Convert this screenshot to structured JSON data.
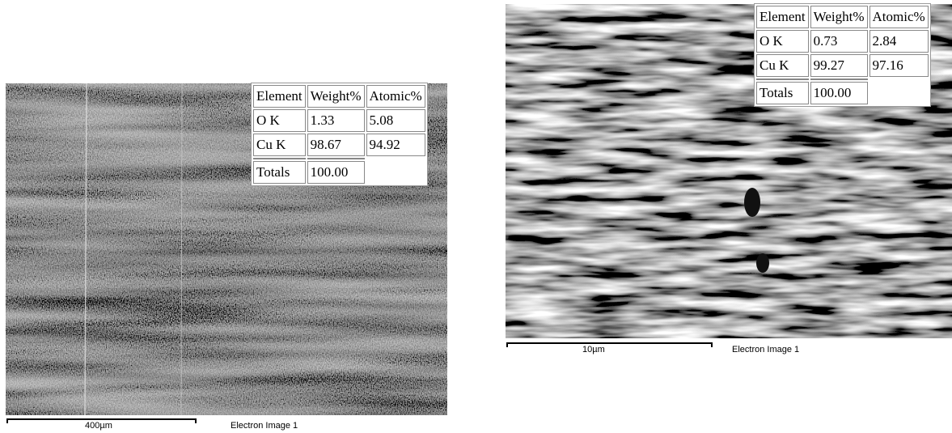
{
  "panels": [
    {
      "scale_bar": "400µm",
      "caption": "Electron Image 1",
      "table": {
        "header": [
          "Element",
          "Weight%",
          "Atomic%"
        ],
        "rows": [
          [
            "O K",
            "1.33",
            "5.08"
          ],
          [
            "Cu K",
            "98.67",
            "94.92"
          ]
        ],
        "totals": [
          "Totals",
          "100.00"
        ]
      }
    },
    {
      "scale_bar": "10µm",
      "caption": "Electron Image 1",
      "table": {
        "header": [
          "Element",
          "Weight%",
          "Atomic%"
        ],
        "rows": [
          [
            "O K",
            "0.73",
            "2.84"
          ],
          [
            "Cu K",
            "99.27",
            "97.16"
          ]
        ],
        "totals": [
          "Totals",
          "100.00"
        ]
      }
    }
  ]
}
